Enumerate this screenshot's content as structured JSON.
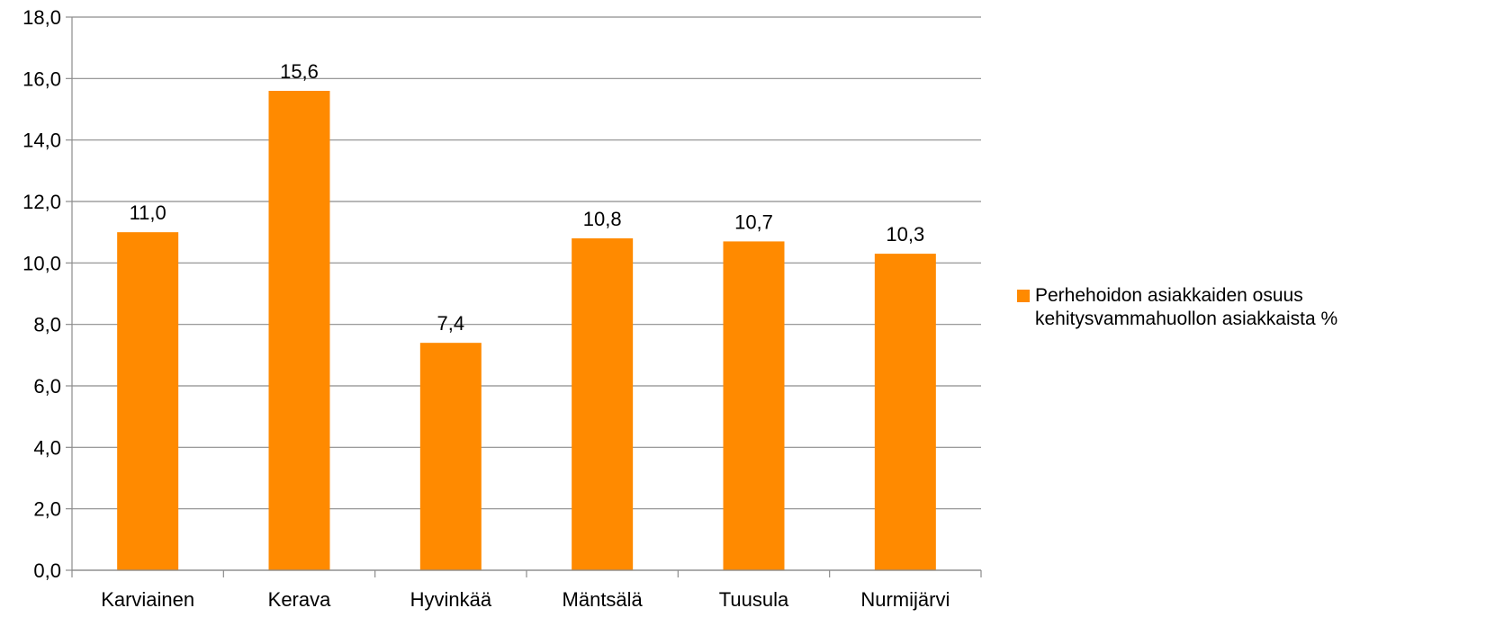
{
  "chart_data": {
    "type": "bar",
    "categories": [
      "Karviainen",
      "Kerava",
      "Hyvinkää",
      "Mäntsälä",
      "Tuusula",
      "Nurmijärvi"
    ],
    "series": [
      {
        "name": "Perhehoidon asiakkaiden osuus kehitysvammahuollon asiakkaista %",
        "values": [
          11.0,
          15.6,
          7.4,
          10.8,
          10.7,
          10.3
        ],
        "labels": [
          "11,0",
          "15,6",
          "7,4",
          "10,8",
          "10,7",
          "10,3"
        ],
        "color": "#ff8a00"
      }
    ],
    "ylim": [
      0,
      18
    ],
    "yticks": [
      "0,0",
      "2,0",
      "4,0",
      "6,0",
      "8,0",
      "10,0",
      "12,0",
      "14,0",
      "16,0",
      "18,0"
    ],
    "grid": true,
    "legend_position": "right",
    "title": "",
    "xlabel": "",
    "ylabel": ""
  }
}
